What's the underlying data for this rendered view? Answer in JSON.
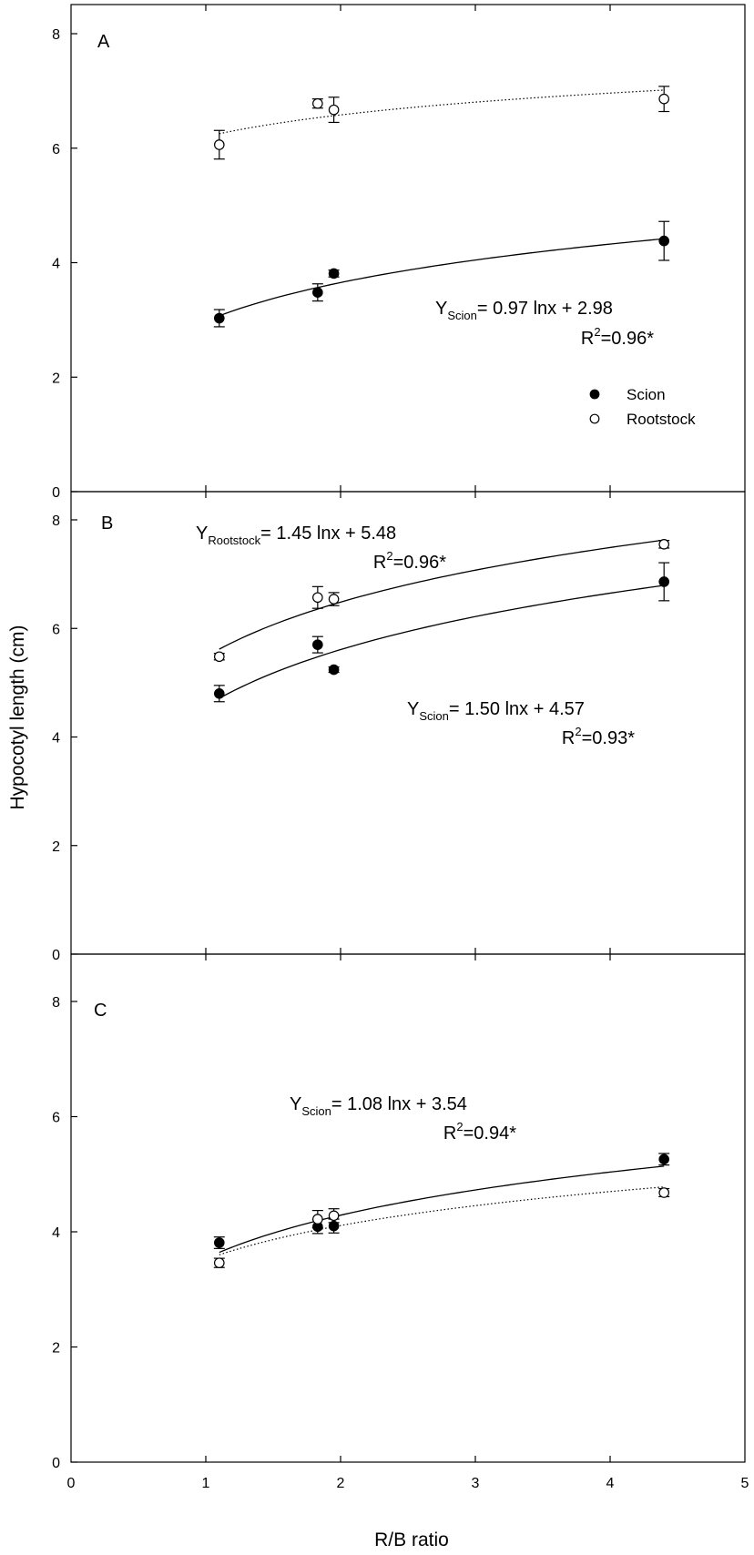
{
  "figure": {
    "xlabel": "R/B ratio",
    "ylabel": "Hypocotyl length (cm)",
    "legend": {
      "scion": "Scion",
      "rootstock": "Rootstock",
      "placement": "inside-bottom-right-of-panel-A"
    }
  },
  "chart_data": [
    {
      "panel": "A",
      "type": "scatter",
      "xlim": [
        0,
        5
      ],
      "ylim": [
        0,
        8
      ],
      "x_ticks": [
        "0",
        "1",
        "2",
        "3",
        "4",
        "5"
      ],
      "y_ticks": [
        "0",
        "2",
        "4",
        "6",
        "8"
      ],
      "grid": false,
      "series": [
        {
          "name": "Scion",
          "marker": "filled-circle",
          "fit": "solid",
          "fit_a": 0.97,
          "fit_b": 2.98,
          "points": [
            {
              "x": 1.1,
              "y": 3.03,
              "err": 0.15
            },
            {
              "x": 1.83,
              "y": 3.48,
              "err": 0.15
            },
            {
              "x": 1.95,
              "y": 3.81,
              "err": 0.06
            },
            {
              "x": 4.4,
              "y": 4.38,
              "err": 0.34
            }
          ]
        },
        {
          "name": "Rootstock",
          "marker": "open-circle",
          "fit": "dotted",
          "fit_a": 0.55,
          "fit_b": 6.2,
          "points": [
            {
              "x": 1.1,
              "y": 6.06,
              "err": 0.25
            },
            {
              "x": 1.83,
              "y": 6.78,
              "err": 0.08
            },
            {
              "x": 1.95,
              "y": 6.67,
              "err": 0.22
            },
            {
              "x": 4.4,
              "y": 6.86,
              "err": 0.22
            }
          ]
        }
      ],
      "annotations": [
        {
          "prefix": "Y",
          "sub": "Scion",
          "rest": "= 0.97 lnx + 2.98"
        },
        {
          "prefix": "R",
          "sup": "2",
          "rest": "=0.96*"
        }
      ]
    },
    {
      "panel": "B",
      "type": "scatter",
      "xlim": [
        0,
        5
      ],
      "ylim": [
        0,
        8
      ],
      "x_ticks": [
        "0",
        "1",
        "2",
        "3",
        "4",
        "5"
      ],
      "y_ticks": [
        "0",
        "2",
        "4",
        "6",
        "8"
      ],
      "grid": false,
      "series": [
        {
          "name": "Scion",
          "marker": "filled-circle",
          "fit": "solid",
          "fit_a": 1.5,
          "fit_b": 4.57,
          "points": [
            {
              "x": 1.1,
              "y": 4.8,
              "err": 0.15
            },
            {
              "x": 1.83,
              "y": 5.7,
              "err": 0.15
            },
            {
              "x": 1.95,
              "y": 5.24,
              "err": 0.05
            },
            {
              "x": 4.4,
              "y": 6.86,
              "err": 0.35
            }
          ]
        },
        {
          "name": "Rootstock",
          "marker": "open-circle",
          "fit": "solid",
          "fit_a": 1.45,
          "fit_b": 5.48,
          "points": [
            {
              "x": 1.1,
              "y": 5.48,
              "err": 0.06
            },
            {
              "x": 1.83,
              "y": 6.57,
              "err": 0.2
            },
            {
              "x": 1.95,
              "y": 6.54,
              "err": 0.12
            },
            {
              "x": 4.4,
              "y": 7.55,
              "err": 0.07
            }
          ]
        }
      ],
      "annotations": [
        {
          "prefix": "Y",
          "sub": "Rootstock",
          "rest": "= 1.45 lnx + 5.48"
        },
        {
          "prefix": "R",
          "sup": "2",
          "rest": "=0.96*"
        },
        {
          "prefix": "Y",
          "sub": "Scion",
          "rest": "= 1.50 lnx + 4.57"
        },
        {
          "prefix": "R",
          "sup": "2",
          "rest": "=0.93*"
        }
      ]
    },
    {
      "panel": "C",
      "type": "scatter",
      "xlim": [
        0,
        5
      ],
      "ylim": [
        0,
        8
      ],
      "x_ticks": [
        "0",
        "1",
        "2",
        "3",
        "4",
        "5"
      ],
      "y_ticks": [
        "0",
        "2",
        "4",
        "6",
        "8"
      ],
      "grid": false,
      "series": [
        {
          "name": "Scion",
          "marker": "filled-circle",
          "fit": "solid",
          "fit_a": 1.08,
          "fit_b": 3.54,
          "points": [
            {
              "x": 1.1,
              "y": 3.81,
              "err": 0.1
            },
            {
              "x": 1.83,
              "y": 4.09,
              "err": 0.12
            },
            {
              "x": 1.95,
              "y": 4.1,
              "err": 0.12
            },
            {
              "x": 4.4,
              "y": 5.26,
              "err": 0.1
            }
          ]
        },
        {
          "name": "Rootstock",
          "marker": "open-circle",
          "fit": "dotted",
          "fit_a": 0.85,
          "fit_b": 3.52,
          "points": [
            {
              "x": 1.1,
              "y": 3.46,
              "err": 0.08
            },
            {
              "x": 1.83,
              "y": 4.22,
              "err": 0.15
            },
            {
              "x": 1.95,
              "y": 4.28,
              "err": 0.12
            },
            {
              "x": 4.4,
              "y": 4.68,
              "err": 0.07
            }
          ]
        }
      ],
      "annotations": [
        {
          "prefix": "Y",
          "sub": "Scion",
          "rest": "= 1.08 lnx + 3.54"
        },
        {
          "prefix": "R",
          "sup": "2",
          "rest": "=0.94*"
        }
      ]
    }
  ]
}
